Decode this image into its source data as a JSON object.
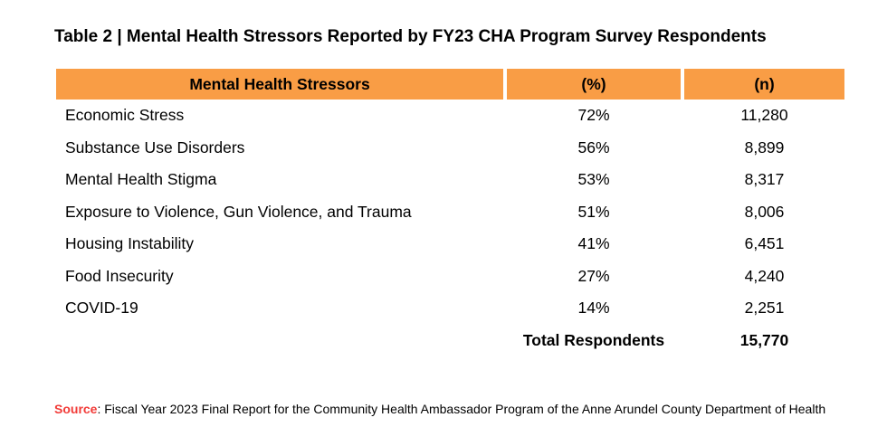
{
  "title": "Table 2 | Mental Health Stressors Reported by FY23 CHA Program Survey Respondents",
  "colors": {
    "header_bg": "#F99D45",
    "source_label_red": "#F23B38",
    "text": "#000000",
    "background": "#FFFFFF"
  },
  "table": {
    "headers": {
      "stressor": "Mental Health Stressors",
      "percent": "(%)",
      "count": "(n)"
    },
    "rows": [
      {
        "stressor": "Economic Stress",
        "percent": "72%",
        "count": "11,280"
      },
      {
        "stressor": "Substance Use Disorders",
        "percent": "56%",
        "count": "8,899"
      },
      {
        "stressor": "Mental Health Stigma",
        "percent": "53%",
        "count": "8,317"
      },
      {
        "stressor": "Exposure to Violence, Gun Violence, and Trauma",
        "percent": "51%",
        "count": "8,006"
      },
      {
        "stressor": "Housing Instability",
        "percent": "41%",
        "count": "6,451"
      },
      {
        "stressor": "Food Insecurity",
        "percent": "27%",
        "count": "4,240"
      },
      {
        "stressor": "COVID-19",
        "percent": "14%",
        "count": "2,251"
      }
    ],
    "total": {
      "label": "Total Respondents",
      "value": "15,770"
    }
  },
  "source": {
    "label": "Source",
    "text": ": Fiscal Year 2023 Final Report for the Community Health Ambassador Program of the Anne Arundel County Department of Health"
  },
  "chart_data": {
    "type": "table",
    "title": "Table 2 | Mental Health Stressors Reported by FY23 CHA Program Survey Respondents",
    "columns": [
      "Mental Health Stressors",
      "(%)",
      "(n)"
    ],
    "categories": [
      "Economic Stress",
      "Substance Use Disorders",
      "Mental Health Stigma",
      "Exposure to Violence, Gun Violence, and Trauma",
      "Housing Instability",
      "Food Insecurity",
      "COVID-19"
    ],
    "series": [
      {
        "name": "(%)",
        "values": [
          72,
          56,
          53,
          51,
          41,
          27,
          14
        ]
      },
      {
        "name": "(n)",
        "values": [
          11280,
          8899,
          8317,
          8006,
          6451,
          4240,
          2251
        ]
      }
    ],
    "total_respondents": 15770
  }
}
